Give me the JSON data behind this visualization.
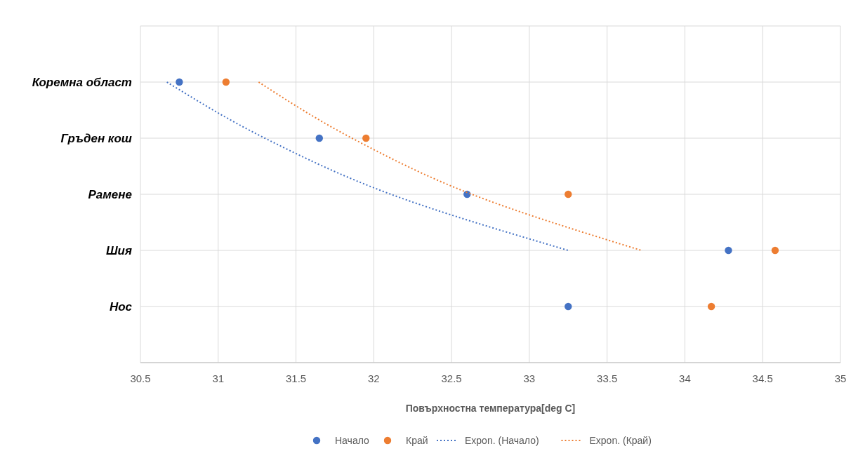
{
  "chart_data": {
    "type": "scatter",
    "orientation": "horizontal",
    "xlabel": "Повърхностна температура[deg C]",
    "categories": [
      "Коремна област",
      "Гръден кош",
      "Рамене",
      "Шия",
      "Нос"
    ],
    "xlim": [
      30.5,
      35
    ],
    "xticks": [
      30.5,
      31,
      31.5,
      32,
      32.5,
      33,
      33.5,
      34,
      34.5,
      35
    ],
    "grid": true,
    "legend": "bottom",
    "marker": "circle",
    "series": [
      {
        "name": "Начало",
        "color": "#4472c4",
        "values": [
          30.75,
          31.65,
          32.6,
          34.28,
          33.25
        ]
      },
      {
        "name": "Край",
        "color": "#ed7d31",
        "values": [
          31.05,
          31.95,
          33.25,
          34.58,
          34.17
        ]
      },
      {
        "name": "Expon. (Начало)",
        "type": "line",
        "marker": "none",
        "line_style": "dotted",
        "color": "#4472c4",
        "values": [
          30.67,
          31.3,
          32.11,
          33.25,
          null
        ]
      },
      {
        "name": "Expon. (Край)",
        "type": "line",
        "marker": "none",
        "line_style": "dotted",
        "color": "#ed7d31",
        "values": [
          31.26,
          31.86,
          32.63,
          33.72,
          null
        ]
      }
    ]
  }
}
